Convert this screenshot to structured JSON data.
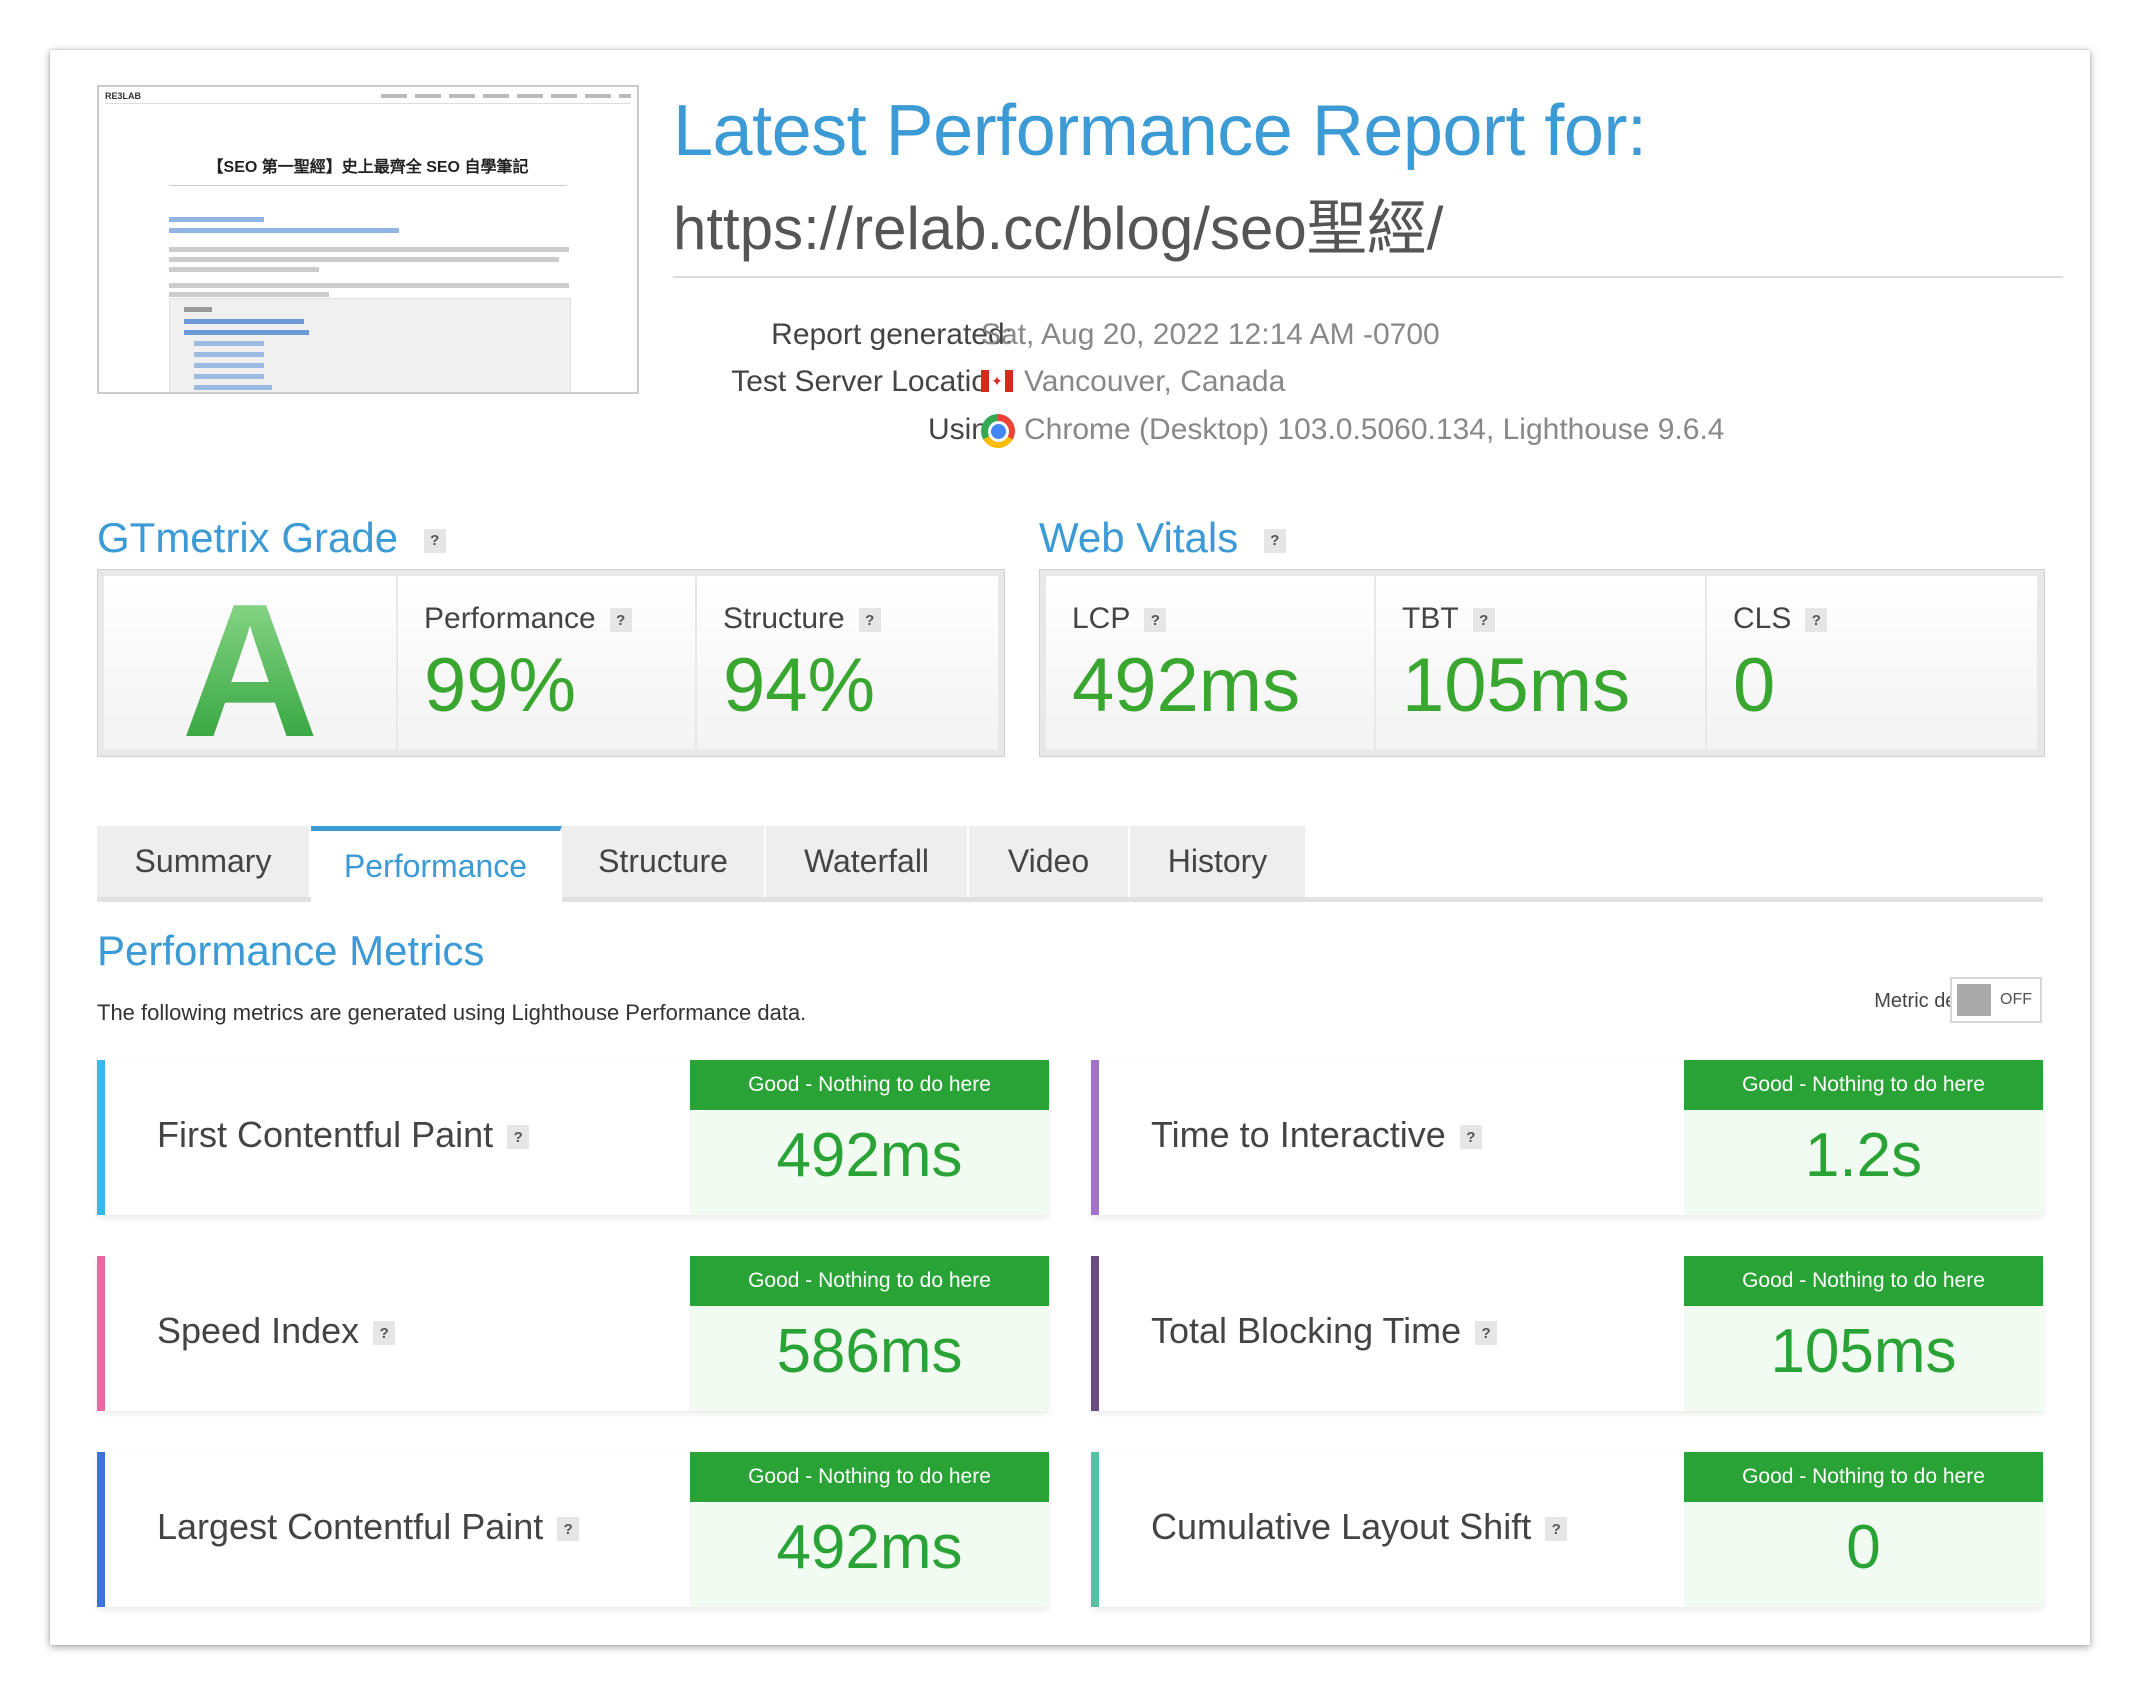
{
  "thumbnail": {
    "brand": "RE3LAB",
    "page_title": "【SEO 第一聖經】史上最齊全 SEO 自學筆記"
  },
  "header": {
    "title": "Latest Performance Report for:",
    "url": "https://relab.cc/blog/seo聖經/"
  },
  "info": {
    "report_generated_label": "Report generated:",
    "report_generated_value": "Sat, Aug 20, 2022 12:14 AM -0700",
    "location_label": "Test Server Location:",
    "location_value": "Vancouver, Canada",
    "using_label": "Using:",
    "using_value": "Chrome (Desktop) 103.0.5060.134, Lighthouse 9.6.4"
  },
  "grade": {
    "heading": "GTmetrix Grade",
    "letter": "A",
    "performance_label": "Performance",
    "performance_value": "99%",
    "structure_label": "Structure",
    "structure_value": "94%"
  },
  "vitals": {
    "heading": "Web Vitals",
    "lcp_label": "LCP",
    "lcp_value": "492ms",
    "tbt_label": "TBT",
    "tbt_value": "105ms",
    "cls_label": "CLS",
    "cls_value": "0"
  },
  "help_icon": "?",
  "tabs": [
    "Summary",
    "Performance",
    "Structure",
    "Waterfall",
    "Video",
    "History"
  ],
  "active_tab": "Performance",
  "metrics_section": {
    "title": "Performance Metrics",
    "subtitle": "The following metrics are generated using Lighthouse Performance data.",
    "details_label": "Metric details",
    "toggle_state": "OFF"
  },
  "metrics": [
    {
      "name": "First Contentful Paint",
      "status": "Good - Nothing to do here",
      "value": "492ms",
      "color": "#3ab6e8"
    },
    {
      "name": "Time to Interactive",
      "status": "Good - Nothing to do here",
      "value": "1.2s",
      "color": "#a172c9"
    },
    {
      "name": "Speed Index",
      "status": "Good - Nothing to do here",
      "value": "586ms",
      "color": "#e66a9f"
    },
    {
      "name": "Total Blocking Time",
      "status": "Good - Nothing to do here",
      "value": "105ms",
      "color": "#6a4b7d"
    },
    {
      "name": "Largest Contentful Paint",
      "status": "Good - Nothing to do here",
      "value": "492ms",
      "color": "#3d73d4"
    },
    {
      "name": "Cumulative Layout Shift",
      "status": "Good - Nothing to do here",
      "value": "0",
      "color": "#56c1a2"
    }
  ],
  "colors": {
    "accent": "#3c9ad5",
    "good": "#2aa336"
  }
}
